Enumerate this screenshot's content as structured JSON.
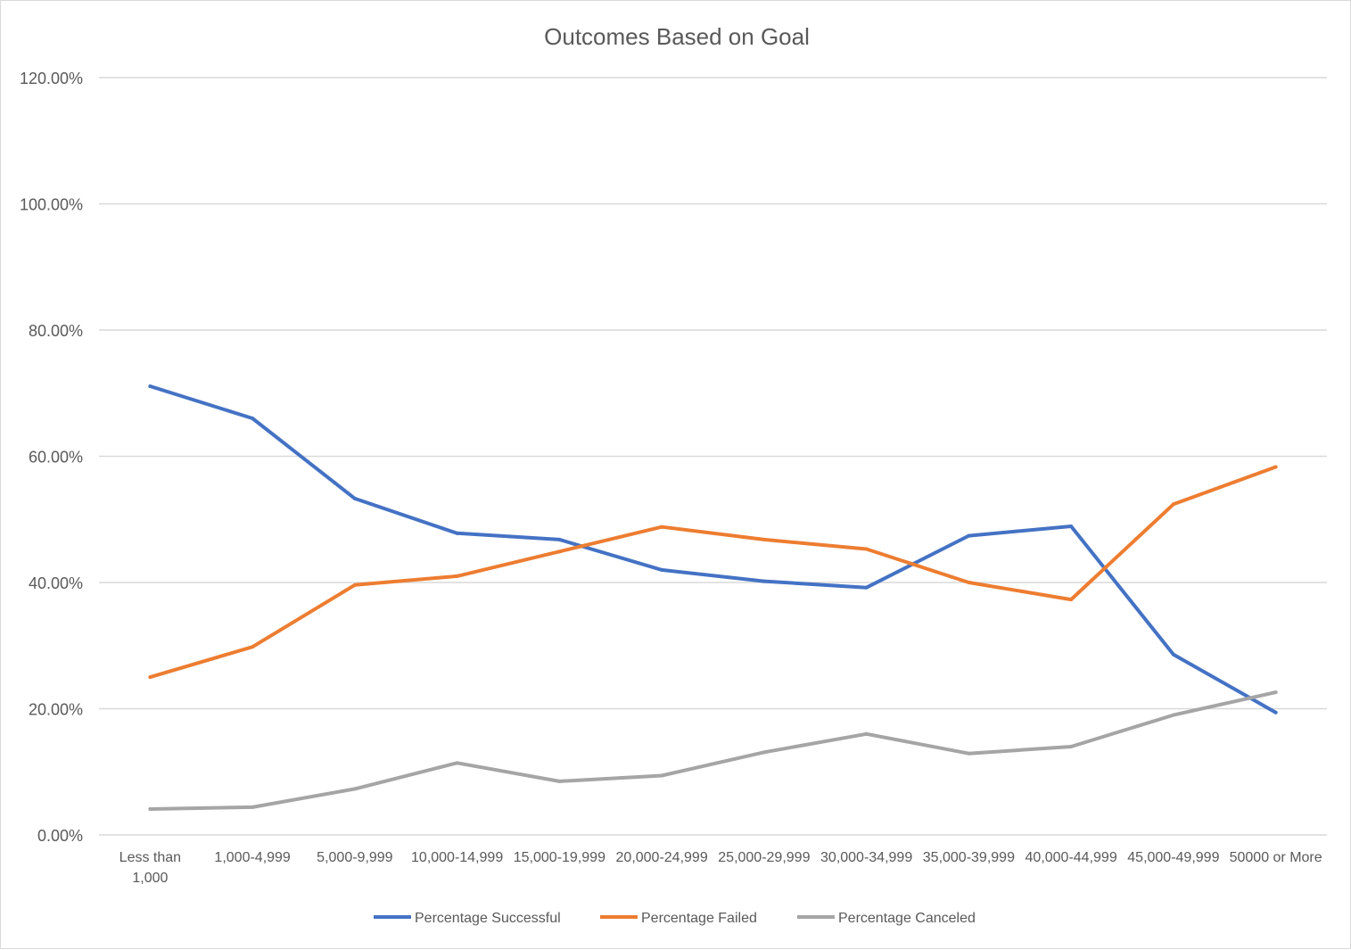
{
  "chart_data": {
    "type": "line",
    "title": "Outcomes Based on Goal",
    "xlabel": "",
    "ylabel": "",
    "ylim": [
      0,
      120
    ],
    "yticks": [
      "0.00%",
      "20.00%",
      "40.00%",
      "60.00%",
      "80.00%",
      "100.00%",
      "120.00%"
    ],
    "ytick_values": [
      0,
      20,
      40,
      60,
      80,
      100,
      120
    ],
    "categories": [
      "Less than 1,000",
      "1,000-4,999",
      "5,000-9,999",
      "10,000-14,999",
      "15,000-19,999",
      "20,000-24,999",
      "25,000-29,999",
      "30,000-34,999",
      "35,000-39,999",
      "40,000-44,999",
      "45,000-49,999",
      "50000 or More"
    ],
    "grid": true,
    "legend_position": "bottom",
    "series": [
      {
        "name": "Percentage Successful",
        "color": "#4472C4",
        "values": [
          71.1,
          66.0,
          53.3,
          47.8,
          46.8,
          42.0,
          40.2,
          39.2,
          47.4,
          48.9,
          28.6,
          19.4
        ]
      },
      {
        "name": "Percentage Failed",
        "color": "#ED7D31",
        "values": [
          25.0,
          29.8,
          39.6,
          41.0,
          44.9,
          48.8,
          46.8,
          45.3,
          40.0,
          37.3,
          52.4,
          58.3
        ]
      },
      {
        "name": "Percentage Canceled",
        "color": "#A5A5A5",
        "values": [
          4.1,
          4.4,
          7.3,
          11.4,
          8.5,
          9.4,
          13.1,
          16.0,
          12.9,
          14.0,
          19.0,
          22.6
        ]
      }
    ]
  }
}
